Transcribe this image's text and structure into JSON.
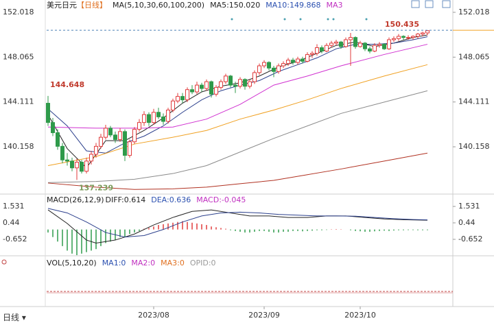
{
  "header": {
    "symbol": "美元日元",
    "period": "【日线】",
    "ma_label": "MA(5,10,30,60,100,200)",
    "ma5": "MA5:150.020",
    "ma10": "MA10:149.868",
    "ma3": "MA3"
  },
  "macd_header": {
    "label": "MACD(26,12,9)",
    "diff": "DIFF:0.614",
    "dea": "DEA:0.636",
    "macd": "MACD:-0.045"
  },
  "vol_header": {
    "label": "VOL(5,10,20)",
    "ma1": "MA1:0",
    "ma2": "MA2:0",
    "ma3": "MA3:0",
    "opid": "OPID:0"
  },
  "period_selector": "日线",
  "chart_data": [
    {
      "type": "candlestick",
      "ylim": [
        136.17,
        152.5
      ],
      "yticks": [
        152.018,
        148.065,
        144.111,
        140.158
      ],
      "xlim": [
        0,
        80
      ],
      "xticks": [
        {
          "value": 22,
          "label": "2023/08"
        },
        {
          "value": 45,
          "label": "2023/09"
        },
        {
          "value": 65,
          "label": "2023/10"
        }
      ],
      "up_color": "#e03a3a",
      "down_color": "#2e9a4a",
      "ohlc": [
        [
          144.0,
          144.648,
          142.0,
          142.3
        ],
        [
          142.3,
          142.7,
          141.1,
          141.4
        ],
        [
          141.4,
          141.7,
          139.9,
          140.2
        ],
        [
          140.2,
          140.5,
          138.7,
          139.0
        ],
        [
          139.0,
          139.6,
          138.5,
          138.9
        ],
        [
          138.9,
          139.2,
          138.0,
          138.3
        ],
        [
          138.3,
          139.1,
          137.239,
          138.8
        ],
        [
          138.8,
          139.0,
          137.8,
          138.0
        ],
        [
          138.0,
          139.2,
          137.8,
          138.9
        ],
        [
          138.9,
          139.8,
          138.6,
          139.5
        ],
        [
          139.5,
          140.5,
          139.2,
          140.2
        ],
        [
          140.2,
          141.3,
          140.0,
          141.0
        ],
        [
          141.0,
          142.1,
          140.8,
          141.8
        ],
        [
          141.8,
          142.0,
          141.0,
          141.2
        ],
        [
          141.2,
          141.5,
          140.5,
          140.8
        ],
        [
          140.8,
          141.8,
          140.6,
          141.5
        ],
        [
          141.5,
          141.7,
          138.9,
          139.4
        ],
        [
          139.4,
          140.8,
          139.2,
          140.6
        ],
        [
          140.6,
          141.9,
          140.4,
          141.7
        ],
        [
          141.7,
          142.6,
          141.5,
          142.3
        ],
        [
          142.3,
          143.3,
          142.0,
          143.0
        ],
        [
          143.0,
          143.2,
          142.0,
          142.3
        ],
        [
          142.3,
          143.5,
          142.1,
          143.2
        ],
        [
          143.2,
          143.6,
          142.6,
          142.8
        ],
        [
          142.8,
          143.1,
          142.1,
          142.4
        ],
        [
          142.4,
          143.6,
          142.2,
          143.4
        ],
        [
          143.4,
          144.4,
          143.2,
          144.2
        ],
        [
          144.2,
          144.9,
          144.0,
          144.6
        ],
        [
          144.6,
          144.9,
          144.0,
          144.3
        ],
        [
          144.3,
          145.4,
          144.1,
          145.2
        ],
        [
          145.2,
          145.6,
          144.8,
          145.0
        ],
        [
          145.0,
          145.9,
          144.8,
          145.6
        ],
        [
          145.6,
          145.8,
          145.0,
          145.3
        ],
        [
          145.3,
          146.1,
          145.1,
          145.9
        ],
        [
          145.9,
          146.0,
          144.5,
          144.8
        ],
        [
          144.8,
          145.6,
          144.6,
          145.4
        ],
        [
          145.4,
          146.1,
          145.2,
          145.9
        ],
        [
          145.9,
          146.6,
          145.7,
          146.4
        ],
        [
          146.4,
          146.5,
          145.4,
          145.6
        ],
        [
          145.6,
          145.9,
          144.9,
          145.5
        ],
        [
          145.5,
          146.3,
          145.3,
          146.1
        ],
        [
          146.1,
          146.2,
          145.2,
          145.5
        ],
        [
          145.5,
          146.1,
          145.3,
          145.9
        ],
        [
          145.9,
          146.9,
          145.7,
          146.7
        ],
        [
          146.7,
          147.5,
          146.5,
          147.3
        ],
        [
          147.3,
          147.8,
          147.1,
          147.6
        ],
        [
          147.6,
          147.7,
          146.9,
          147.1
        ],
        [
          147.1,
          147.3,
          146.3,
          146.8
        ],
        [
          146.8,
          147.5,
          146.6,
          147.3
        ],
        [
          147.3,
          147.7,
          147.1,
          147.5
        ],
        [
          147.5,
          148.0,
          147.3,
          147.8
        ],
        [
          147.8,
          148.0,
          147.4,
          147.6
        ],
        [
          147.6,
          148.1,
          147.4,
          147.9
        ],
        [
          147.9,
          148.1,
          147.5,
          147.7
        ],
        [
          147.7,
          148.5,
          147.6,
          148.3
        ],
        [
          148.3,
          148.6,
          148.0,
          148.4
        ],
        [
          148.4,
          149.2,
          148.2,
          148.9
        ],
        [
          148.9,
          149.1,
          148.4,
          148.6
        ],
        [
          148.6,
          149.3,
          148.5,
          149.1
        ],
        [
          149.1,
          149.5,
          148.9,
          149.3
        ],
        [
          149.3,
          149.6,
          149.1,
          149.4
        ],
        [
          149.4,
          149.5,
          148.8,
          149.0
        ],
        [
          149.0,
          149.8,
          148.9,
          149.6
        ],
        [
          149.6,
          150.2,
          147.3,
          149.8
        ],
        [
          149.8,
          149.9,
          148.8,
          149.0
        ],
        [
          149.0,
          149.5,
          148.9,
          149.3
        ],
        [
          149.3,
          149.4,
          148.6,
          148.8
        ],
        [
          148.8,
          149.0,
          148.4,
          148.6
        ],
        [
          148.6,
          149.3,
          148.5,
          149.1
        ],
        [
          149.1,
          149.4,
          148.9,
          149.2
        ],
        [
          149.2,
          149.3,
          148.7,
          148.8
        ],
        [
          148.8,
          149.8,
          148.7,
          149.6
        ],
        [
          149.6,
          149.9,
          149.4,
          149.7
        ],
        [
          149.7,
          150.1,
          149.5,
          149.9
        ],
        [
          149.9,
          150.0,
          149.6,
          149.8
        ],
        [
          149.8,
          150.0,
          149.6,
          149.8
        ],
        [
          149.8,
          150.0,
          149.6,
          149.9
        ],
        [
          149.9,
          150.2,
          149.7,
          150.1
        ],
        [
          150.1,
          150.3,
          149.9,
          150.2
        ],
        [
          150.2,
          150.435,
          150.0,
          150.4
        ]
      ],
      "ma": [
        {
          "color": "#222222",
          "x": [
            0,
            4,
            8,
            12,
            16,
            20,
            24,
            28,
            32,
            36,
            40,
            44,
            48,
            52,
            56,
            60,
            64,
            68,
            72,
            76,
            79
          ],
          "values": [
            143.0,
            140.0,
            138.3,
            140.7,
            140.7,
            141.6,
            142.7,
            144.0,
            145.0,
            145.5,
            145.8,
            146.4,
            147.2,
            147.7,
            148.4,
            149.1,
            149.4,
            149.0,
            149.3,
            149.8,
            150.02
          ]
        },
        {
          "color": "#2b3f8c",
          "x": [
            0,
            4,
            8,
            12,
            16,
            20,
            24,
            28,
            32,
            36,
            40,
            44,
            48,
            52,
            56,
            60,
            64,
            68,
            72,
            76,
            79
          ],
          "values": [
            143.5,
            142.0,
            139.8,
            139.6,
            140.5,
            141.1,
            142.0,
            143.2,
            144.3,
            145.1,
            145.6,
            146.0,
            146.8,
            147.4,
            148.0,
            148.8,
            149.2,
            149.2,
            149.3,
            149.6,
            149.868
          ]
        },
        {
          "color": "#d030d0",
          "x": [
            0,
            10,
            20,
            26,
            33,
            40,
            47,
            54,
            61,
            70,
            79
          ],
          "values": [
            141.9,
            141.8,
            141.8,
            141.9,
            142.6,
            143.9,
            145.6,
            146.4,
            147.3,
            148.3,
            149.2
          ]
        },
        {
          "color": "#f0a020",
          "x": [
            0,
            10,
            18,
            26,
            33,
            40,
            47,
            54,
            61,
            70,
            79
          ],
          "values": [
            138.5,
            139.3,
            140.4,
            141.0,
            141.6,
            142.6,
            143.4,
            144.3,
            145.3,
            146.4,
            147.4
          ]
        },
        {
          "color": "#8a8a8a",
          "x": [
            0,
            10,
            18,
            26,
            33,
            40,
            47,
            54,
            61,
            70,
            79
          ],
          "values": [
            137.0,
            137.1,
            137.3,
            137.8,
            138.5,
            139.7,
            140.9,
            142.0,
            143.1,
            144.1,
            145.1
          ]
        },
        {
          "color": "#b03020",
          "x": [
            0,
            10,
            18,
            26,
            33,
            40,
            47,
            54,
            61,
            70,
            79
          ],
          "values": [
            136.96,
            136.6,
            136.4,
            136.45,
            136.6,
            136.9,
            137.2,
            137.7,
            138.2,
            138.9,
            139.6
          ]
        }
      ]
    },
    {
      "type": "macd",
      "ylim": [
        -1.607,
        2.258
      ],
      "yticks": [
        1.531,
        0.44,
        -0.652
      ],
      "xlim": [
        0,
        80
      ],
      "up_color": "#e03a3a",
      "down_color": "#2e9a4a",
      "histogram": [
        -0.2,
        -0.5,
        -0.8,
        -1.1,
        -1.4,
        -1.6,
        -1.7,
        -1.6,
        -1.5,
        -1.4,
        -1.3,
        -1.1,
        -0.9,
        -0.8,
        -0.7,
        -0.5,
        -0.5,
        -0.3,
        -0.2,
        -0.1,
        0.05,
        0.1,
        0.2,
        0.3,
        0.35,
        0.4,
        0.45,
        0.5,
        0.55,
        0.5,
        0.45,
        0.4,
        0.35,
        0.3,
        0.2,
        0.15,
        0.1,
        0.05,
        -0.05,
        -0.1,
        -0.15,
        -0.2,
        -0.2,
        -0.15,
        -0.1,
        -0.1,
        -0.15,
        -0.2,
        -0.2,
        -0.15,
        -0.15,
        -0.1,
        -0.1,
        -0.12,
        -0.1,
        -0.08,
        -0.05,
        -0.05,
        -0.03,
        0.02,
        0.03,
        0.02,
        0.0,
        -0.05,
        -0.1,
        -0.12,
        -0.15,
        -0.15,
        -0.12,
        -0.1,
        -0.08,
        -0.1,
        -0.07,
        -0.05,
        -0.05,
        -0.04,
        -0.04,
        -0.05,
        -0.05,
        -0.045
      ],
      "series": [
        {
          "color": "#222222",
          "x": [
            0,
            4,
            8,
            10,
            14,
            18,
            22,
            26,
            30,
            34,
            38,
            42,
            46,
            50,
            54,
            58,
            62,
            66,
            70,
            74,
            79
          ],
          "values": [
            1.3,
            0.4,
            -0.7,
            -0.9,
            -0.7,
            -0.3,
            0.3,
            0.8,
            1.2,
            1.3,
            1.1,
            0.9,
            0.9,
            0.8,
            0.8,
            0.9,
            0.9,
            0.8,
            0.7,
            0.65,
            0.614
          ]
        },
        {
          "color": "#2b3f8c",
          "x": [
            0,
            4,
            8,
            12,
            16,
            20,
            24,
            28,
            32,
            36,
            40,
            44,
            48,
            52,
            56,
            60,
            64,
            68,
            72,
            76,
            79
          ],
          "values": [
            1.4,
            1.1,
            0.5,
            -0.2,
            -0.5,
            -0.4,
            0.0,
            0.5,
            0.9,
            1.1,
            1.15,
            1.1,
            1.0,
            0.95,
            0.9,
            0.9,
            0.88,
            0.8,
            0.72,
            0.66,
            0.636
          ]
        }
      ]
    }
  ]
}
